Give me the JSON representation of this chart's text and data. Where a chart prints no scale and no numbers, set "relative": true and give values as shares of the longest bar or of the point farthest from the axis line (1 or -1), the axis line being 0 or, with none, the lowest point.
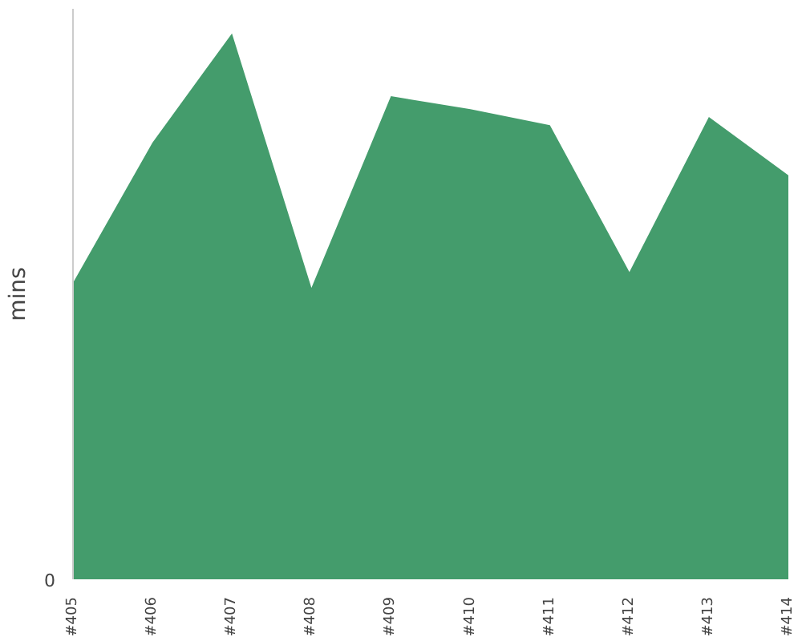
{
  "chart_data": {
    "type": "area",
    "ylabel": "mins",
    "relative": true,
    "annotations": [
      "0"
    ],
    "categories": [
      "#405",
      "#406",
      "#407",
      "#408",
      "#409",
      "#410",
      "#411",
      "#412",
      "#413",
      "#414"
    ],
    "series": [
      {
        "color": "#449c6c",
        "values": [
          0.543,
          0.8,
          1,
          0.534,
          0.885,
          0.861,
          0.832,
          0.563,
          0.847,
          0.74
        ]
      }
    ]
  }
}
